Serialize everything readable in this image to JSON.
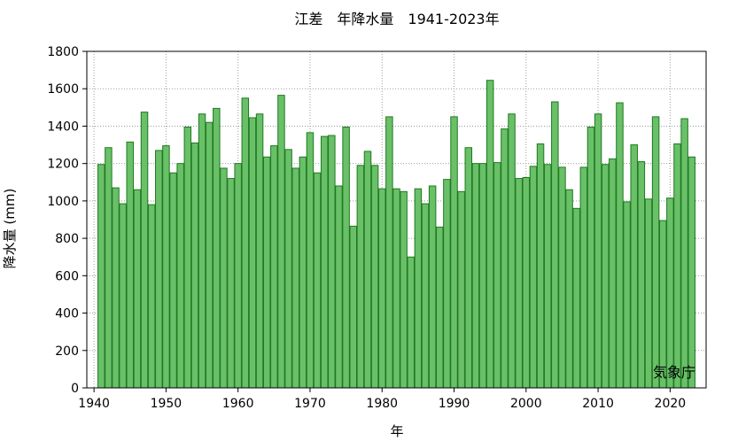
{
  "chart_data": {
    "type": "bar",
    "title": "江差　年降水量　1941-2023年",
    "xlabel": "年",
    "ylabel": "降水量 (mm)",
    "annotation": "気象庁",
    "xlim": [
      1939,
      2025
    ],
    "ylim": [
      0,
      1800
    ],
    "x_ticks": [
      1940,
      1950,
      1960,
      1970,
      1980,
      1990,
      2000,
      2010,
      2020
    ],
    "y_ticks": [
      0,
      200,
      400,
      600,
      800,
      1000,
      1200,
      1400,
      1600,
      1800
    ],
    "grid": true,
    "bar_color": "#6abf69",
    "bar_edge_color": "#1e7a1e",
    "x": [
      1941,
      1942,
      1943,
      1944,
      1945,
      1946,
      1947,
      1948,
      1949,
      1950,
      1951,
      1952,
      1953,
      1954,
      1955,
      1956,
      1957,
      1958,
      1959,
      1960,
      1961,
      1962,
      1963,
      1964,
      1965,
      1966,
      1967,
      1968,
      1969,
      1970,
      1971,
      1972,
      1973,
      1974,
      1975,
      1976,
      1977,
      1978,
      1979,
      1980,
      1981,
      1982,
      1983,
      1984,
      1985,
      1986,
      1987,
      1988,
      1989,
      1990,
      1991,
      1992,
      1993,
      1994,
      1995,
      1996,
      1997,
      1998,
      1999,
      2000,
      2001,
      2002,
      2003,
      2004,
      2005,
      2006,
      2007,
      2008,
      2009,
      2010,
      2011,
      2012,
      2013,
      2014,
      2015,
      2016,
      2017,
      2018,
      2019,
      2020,
      2021,
      2022,
      2023
    ],
    "values": [
      1195,
      1285,
      1070,
      985,
      1315,
      1060,
      1475,
      980,
      1270,
      1295,
      1150,
      1200,
      1395,
      1310,
      1465,
      1420,
      1495,
      1175,
      1120,
      1200,
      1550,
      1445,
      1465,
      1235,
      1295,
      1565,
      1275,
      1175,
      1235,
      1365,
      1150,
      1345,
      1350,
      1080,
      1395,
      865,
      1190,
      1265,
      1190,
      1065,
      1450,
      1065,
      1050,
      700,
      1065,
      985,
      1080,
      860,
      1115,
      1450,
      1050,
      1285,
      1200,
      1200,
      1645,
      1205,
      1385,
      1465,
      1120,
      1125,
      1185,
      1305,
      1195,
      1530,
      1180,
      1060,
      960,
      1180,
      1395,
      1465,
      1195,
      1225,
      1525,
      995,
      1300,
      1210,
      1010,
      1450,
      895,
      1015,
      1305,
      1440,
      1235
    ]
  }
}
